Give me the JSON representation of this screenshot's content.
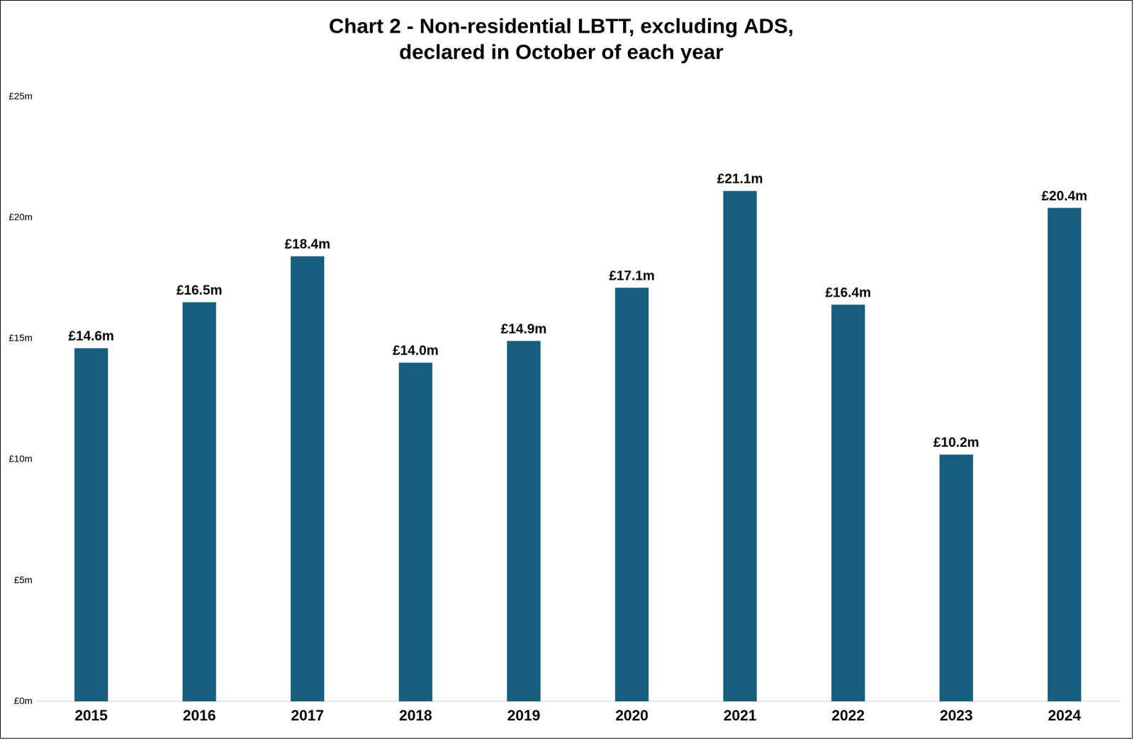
{
  "chart_data": {
    "type": "bar",
    "title": [
      "Chart 2 - Non-residential LBTT, excluding ADS,",
      "declared in October of each year"
    ],
    "categories": [
      "2015",
      "2016",
      "2017",
      "2018",
      "2019",
      "2020",
      "2021",
      "2022",
      "2023",
      "2024"
    ],
    "values": [
      14.6,
      16.5,
      18.4,
      14.0,
      14.9,
      17.1,
      21.1,
      16.4,
      10.2,
      20.4
    ],
    "value_labels": [
      "£14.6m",
      "£16.5m",
      "£18.4m",
      "£14.0m",
      "£14.9m",
      "£17.1m",
      "£21.1m",
      "£16.4m",
      "£10.2m",
      "£20.4m"
    ],
    "color": "#175f80",
    "ylim": [
      0,
      25
    ],
    "yticks": [
      {
        "value": 0,
        "label": "£0m"
      },
      {
        "value": 5,
        "label": "£5m"
      },
      {
        "value": 10,
        "label": "£10m"
      },
      {
        "value": 15,
        "label": "£15m"
      },
      {
        "value": 20,
        "label": "£20m"
      },
      {
        "value": 25,
        "label": "£25m"
      }
    ],
    "grid": false,
    "data_labels": true
  }
}
